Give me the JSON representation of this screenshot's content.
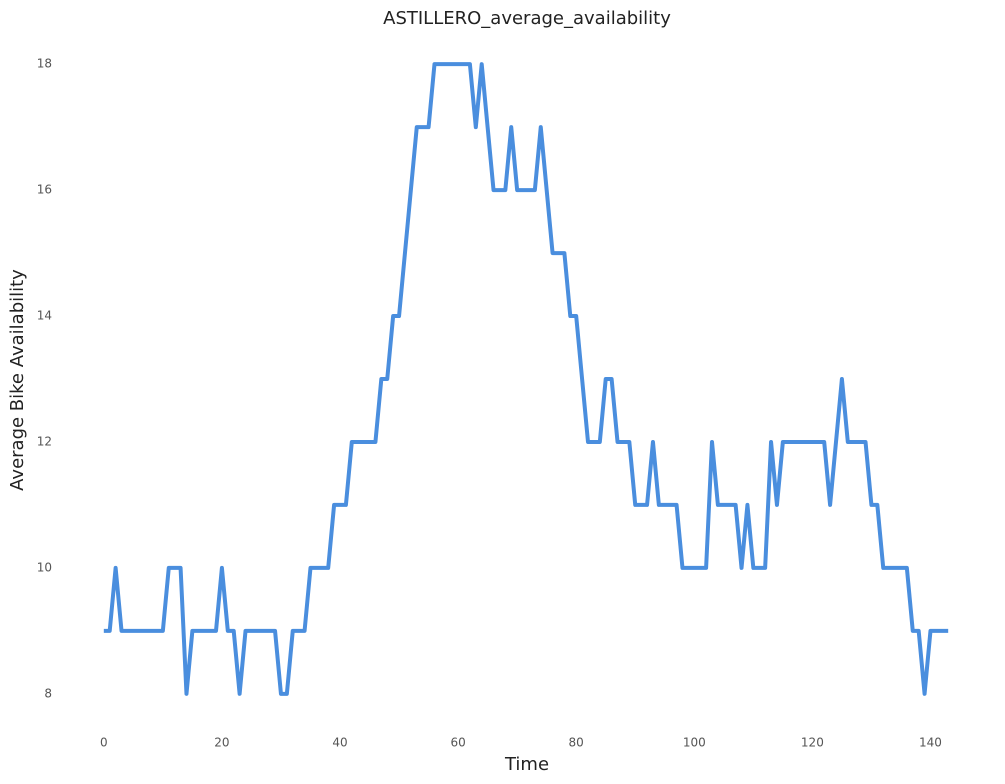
{
  "chart_data": {
    "type": "line",
    "title": "ASTILLERO_average_availability",
    "x_label": "Time",
    "y_label": "Average Bike Availability",
    "x": [
      0,
      1,
      2,
      3,
      4,
      5,
      6,
      7,
      8,
      9,
      10,
      11,
      12,
      13,
      14,
      15,
      16,
      17,
      18,
      19,
      20,
      21,
      22,
      23,
      24,
      25,
      26,
      27,
      28,
      29,
      30,
      31,
      32,
      33,
      34,
      35,
      36,
      37,
      38,
      39,
      40,
      41,
      42,
      43,
      44,
      45,
      46,
      47,
      48,
      49,
      50,
      51,
      52,
      53,
      54,
      55,
      56,
      57,
      58,
      59,
      60,
      61,
      62,
      63,
      64,
      65,
      66,
      67,
      68,
      69,
      70,
      71,
      72,
      73,
      74,
      75,
      76,
      77,
      78,
      79,
      80,
      81,
      82,
      83,
      84,
      85,
      86,
      87,
      88,
      89,
      90,
      91,
      92,
      93,
      94,
      95,
      96,
      97,
      98,
      99,
      100,
      101,
      102,
      103,
      104,
      105,
      106,
      107,
      108,
      109,
      110,
      111,
      112,
      113,
      114,
      115,
      116,
      117,
      118,
      119,
      120,
      121,
      122,
      123,
      124,
      125,
      126,
      127,
      128,
      129,
      130,
      131,
      132,
      133,
      134,
      135,
      136,
      137,
      138,
      139,
      140,
      141,
      142,
      143
    ],
    "series": [
      {
        "name": "ASTILLERO",
        "color": "#4a8ede",
        "values": [
          9,
          9,
          10,
          9,
          9,
          9,
          9,
          9,
          9,
          9,
          9,
          10,
          10,
          10,
          8,
          9,
          9,
          9,
          9,
          9,
          10,
          9,
          9,
          8,
          9,
          9,
          9,
          9,
          9,
          9,
          8,
          8,
          9,
          9,
          9,
          10,
          10,
          10,
          10,
          11,
          11,
          11,
          12,
          12,
          12,
          12,
          12,
          13,
          13,
          14,
          14,
          15,
          16,
          17,
          17,
          17,
          18,
          18,
          18,
          18,
          18,
          18,
          18,
          17,
          18,
          17,
          16,
          16,
          16,
          17,
          16,
          16,
          16,
          16,
          17,
          16,
          15,
          15,
          15,
          14,
          14,
          13,
          12,
          12,
          12,
          13,
          13,
          12,
          12,
          12,
          11,
          11,
          11,
          12,
          11,
          11,
          11,
          11,
          10,
          10,
          10,
          10,
          10,
          12,
          11,
          11,
          11,
          11,
          10,
          11,
          10,
          10,
          10,
          12,
          11,
          12,
          12,
          12,
          12,
          12,
          12,
          12,
          12,
          11,
          12,
          13,
          12,
          12,
          12,
          12,
          11,
          11,
          10,
          10,
          10,
          10,
          10,
          9,
          9,
          8,
          9,
          9,
          9,
          9
        ]
      }
    ],
    "xlim": [
      -2,
      145
    ],
    "ylim": [
      7.6,
      18.4
    ],
    "xticks": [
      0,
      20,
      40,
      60,
      80,
      100,
      120,
      140
    ],
    "yticks": [
      8,
      10,
      12,
      14,
      16,
      18
    ],
    "grid": false
  }
}
